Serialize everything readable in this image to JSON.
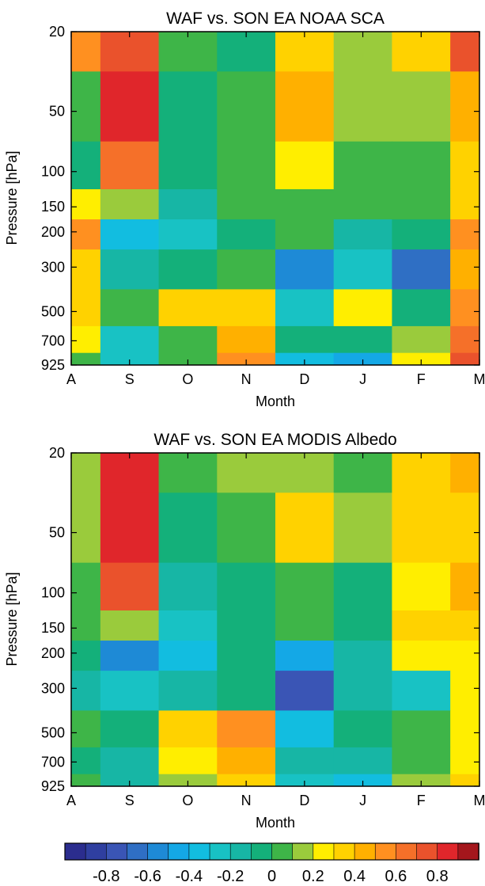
{
  "chart_data": [
    {
      "type": "heatmap",
      "title": "WAF vs. SON EA NOAA SCA",
      "xlabel": "Month",
      "ylabel": "Pressure [hPa]",
      "x": [
        "A",
        "S",
        "O",
        "N",
        "D",
        "J",
        "F",
        "M"
      ],
      "y": [
        20,
        50,
        100,
        150,
        200,
        300,
        500,
        700,
        925
      ],
      "ylim": [
        925,
        20
      ],
      "z": [
        [
          0.55,
          0.75,
          0.0,
          -0.05,
          0.3,
          0.15,
          0.3,
          0.75
        ],
        [
          0.05,
          0.8,
          -0.05,
          0.0,
          0.4,
          0.15,
          0.1,
          0.45
        ],
        [
          -0.1,
          0.6,
          -0.05,
          0.0,
          0.2,
          0.05,
          0.05,
          0.35
        ],
        [
          0.25,
          0.15,
          -0.2,
          0.05,
          0.05,
          0.0,
          0.0,
          0.35
        ],
        [
          0.5,
          -0.35,
          -0.25,
          -0.05,
          0.0,
          -0.2,
          -0.1,
          0.5
        ],
        [
          0.35,
          -0.2,
          -0.1,
          0.05,
          -0.55,
          -0.25,
          -0.65,
          0.45
        ],
        [
          0.3,
          0.0,
          0.35,
          0.35,
          -0.25,
          0.25,
          -0.1,
          0.5
        ],
        [
          0.2,
          -0.3,
          0.05,
          0.45,
          -0.05,
          -0.1,
          0.15,
          0.6
        ],
        [
          0.05,
          -0.25,
          0.0,
          0.5,
          -0.4,
          -0.45,
          0.2,
          0.7
        ]
      ]
    },
    {
      "type": "heatmap",
      "title": "WAF vs. SON EA MODIS Albedo",
      "xlabel": "Month",
      "ylabel": "Pressure [hPa]",
      "x": [
        "A",
        "S",
        "O",
        "N",
        "D",
        "J",
        "F",
        "M"
      ],
      "y": [
        20,
        50,
        100,
        150,
        200,
        300,
        500,
        700,
        925
      ],
      "ylim": [
        925,
        20
      ],
      "z": [
        [
          0.15,
          0.85,
          0.0,
          0.1,
          0.15,
          0.05,
          0.35,
          0.45
        ],
        [
          0.1,
          0.8,
          -0.05,
          0.05,
          0.3,
          0.1,
          0.3,
          0.35
        ],
        [
          0.05,
          0.75,
          -0.2,
          -0.1,
          0.05,
          -0.05,
          0.2,
          0.4
        ],
        [
          0.0,
          0.1,
          -0.3,
          -0.05,
          0.0,
          -0.05,
          0.3,
          0.3
        ],
        [
          -0.05,
          -0.55,
          -0.35,
          -0.1,
          -0.45,
          -0.15,
          0.25,
          0.25
        ],
        [
          -0.15,
          -0.3,
          -0.15,
          -0.05,
          -0.75,
          -0.2,
          -0.25,
          0.25
        ],
        [
          0.0,
          -0.1,
          0.3,
          0.55,
          -0.4,
          -0.1,
          0.0,
          0.2
        ],
        [
          -0.05,
          -0.15,
          0.2,
          0.4,
          -0.2,
          -0.2,
          0.0,
          0.25
        ],
        [
          0.05,
          -0.2,
          0.15,
          0.3,
          -0.3,
          -0.4,
          0.1,
          0.3
        ]
      ]
    }
  ],
  "colorbar": {
    "tick_labels": [
      "-0.8",
      "-0.6",
      "-0.4",
      "-0.2",
      "0",
      "0.2",
      "0.4",
      "0.6",
      "0.8"
    ],
    "tick_values": [
      -0.8,
      -0.6,
      -0.4,
      -0.2,
      0,
      0.2,
      0.4,
      0.6,
      0.8
    ],
    "range": [
      -1.0,
      1.0
    ],
    "levels": [
      -1.0,
      -0.9,
      -0.8,
      -0.7,
      -0.6,
      -0.5,
      -0.4,
      -0.3,
      -0.2,
      -0.1,
      0,
      0.1,
      0.2,
      0.3,
      0.4,
      0.5,
      0.6,
      0.7,
      0.8,
      0.9,
      1.0
    ],
    "colors": [
      "#2b2d8e",
      "#2f3fa0",
      "#3a55b5",
      "#2f6fc4",
      "#1e8ad6",
      "#14a8e6",
      "#12bde0",
      "#18c2c4",
      "#17b6a5",
      "#14b07a",
      "#3eb548",
      "#9acb3c",
      "#ffee00",
      "#ffd200",
      "#ffb000",
      "#ff9020",
      "#f57029",
      "#ea522c",
      "#e0262b",
      "#a4161c"
    ]
  }
}
